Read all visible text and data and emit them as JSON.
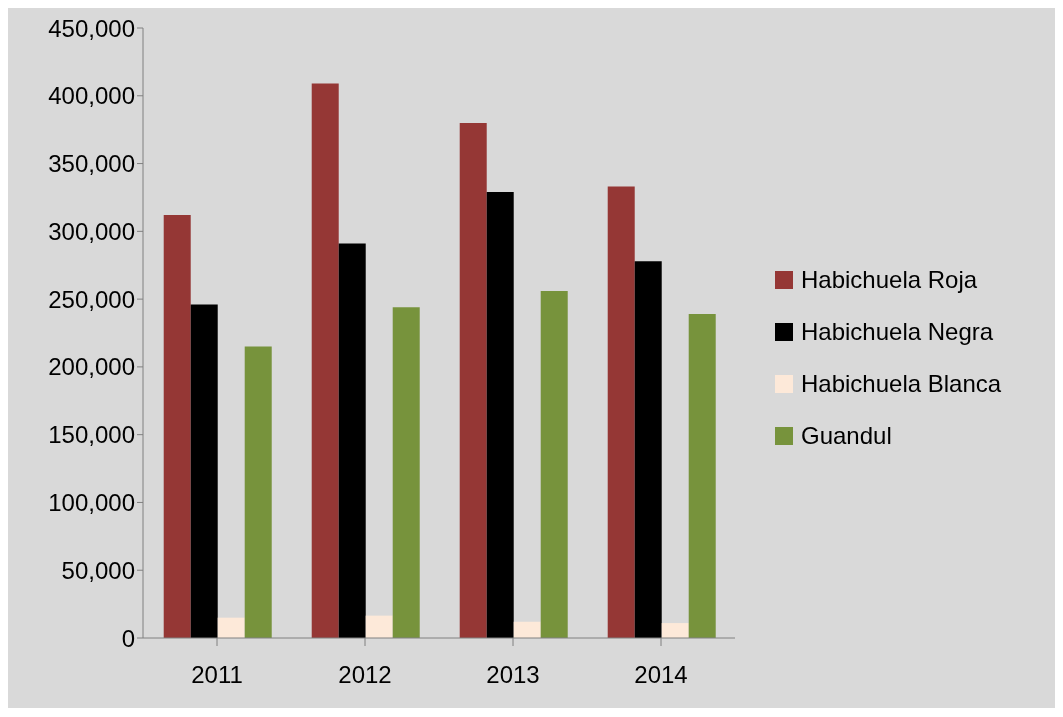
{
  "chart_data": {
    "type": "bar",
    "categories": [
      "2011",
      "2012",
      "2013",
      "2014"
    ],
    "series": [
      {
        "name": "Habichuela Roja",
        "color": "#953735",
        "values": [
          312000,
          409000,
          380000,
          333000
        ]
      },
      {
        "name": "Habichuela Negra",
        "color": "#000000",
        "values": [
          246000,
          291000,
          329000,
          278000
        ]
      },
      {
        "name": "Habichuela Blanca",
        "color": "#fde9d9",
        "values": [
          15000,
          16500,
          12000,
          11000
        ]
      },
      {
        "name": "Guandul",
        "color": "#77933c",
        "values": [
          215000,
          244000,
          256000,
          239000
        ]
      }
    ],
    "ylim": [
      0,
      450000
    ],
    "yticks": [
      0,
      {
        "value": 50000,
        "label": "50,000"
      },
      {
        "value": 100000,
        "label": "100,000"
      },
      {
        "value": 150000,
        "label": "150,000"
      },
      {
        "value": 200000,
        "label": "200,000"
      },
      {
        "value": 250000,
        "label": "250,000"
      },
      {
        "value": 300000,
        "label": "300,000"
      },
      {
        "value": 350000,
        "label": "350,000"
      },
      {
        "value": 400000,
        "label": "400,000"
      },
      {
        "value": 450000,
        "label": "450,000"
      }
    ],
    "grid": false,
    "legend": "right"
  }
}
